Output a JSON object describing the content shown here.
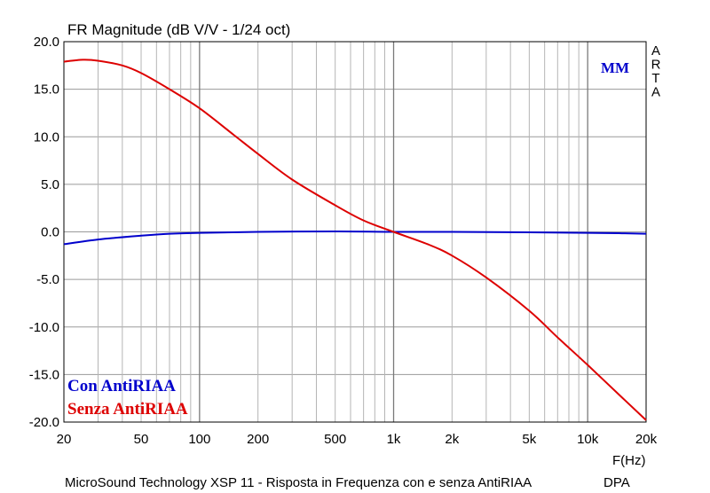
{
  "chart_data": {
    "type": "line",
    "title": "FR Magnitude (dB V/V - 1/24 oct)",
    "xlabel": "F(Hz)",
    "ylabel": "",
    "xscale": "log",
    "xlim": [
      20,
      20000
    ],
    "ylim": [
      -20,
      20
    ],
    "grid": true,
    "x_ticks": [
      20,
      50,
      100,
      200,
      500,
      1000,
      2000,
      5000,
      10000,
      20000
    ],
    "x_tick_labels": [
      "20",
      "50",
      "100",
      "200",
      "500",
      "1k",
      "2k",
      "5k",
      "10k",
      "20k"
    ],
    "y_ticks": [
      20,
      15,
      10,
      5,
      0,
      -5,
      -10,
      -15,
      -20
    ],
    "y_tick_labels": [
      "20.0",
      "15.0",
      "10.0",
      "5.0",
      "0.0",
      "-5.0",
      "-10.0",
      "-15.0",
      "-20.0"
    ],
    "watermark": "ARTA",
    "annotation": "MM",
    "footer": "MicroSound Technology XSP 11 - Risposta in Frequenza con e senza AntiRIAA",
    "footer_right": "DPA",
    "legend_position": "bottom-left",
    "series": [
      {
        "name": "Con AntiRIAA",
        "color": "#0000cc",
        "x": [
          20,
          30,
          50,
          70,
          100,
          200,
          500,
          1000,
          2000,
          5000,
          10000,
          15000,
          20000
        ],
        "y": [
          -1.3,
          -0.8,
          -0.4,
          -0.2,
          -0.1,
          0.0,
          0.05,
          0.0,
          0.0,
          -0.05,
          -0.1,
          -0.15,
          -0.2
        ]
      },
      {
        "name": "Senza AntiRIAA",
        "color": "#dd0000",
        "x": [
          20,
          25,
          30,
          40,
          50,
          70,
          100,
          150,
          200,
          300,
          500,
          700,
          1000,
          1500,
          2000,
          3000,
          5000,
          7000,
          10000,
          15000,
          20000
        ],
        "y": [
          17.9,
          18.1,
          18.0,
          17.5,
          16.7,
          15.0,
          13.0,
          10.2,
          8.2,
          5.5,
          2.8,
          1.2,
          0.0,
          -1.3,
          -2.5,
          -4.8,
          -8.3,
          -11.1,
          -14.0,
          -17.4,
          -19.8
        ]
      }
    ]
  }
}
